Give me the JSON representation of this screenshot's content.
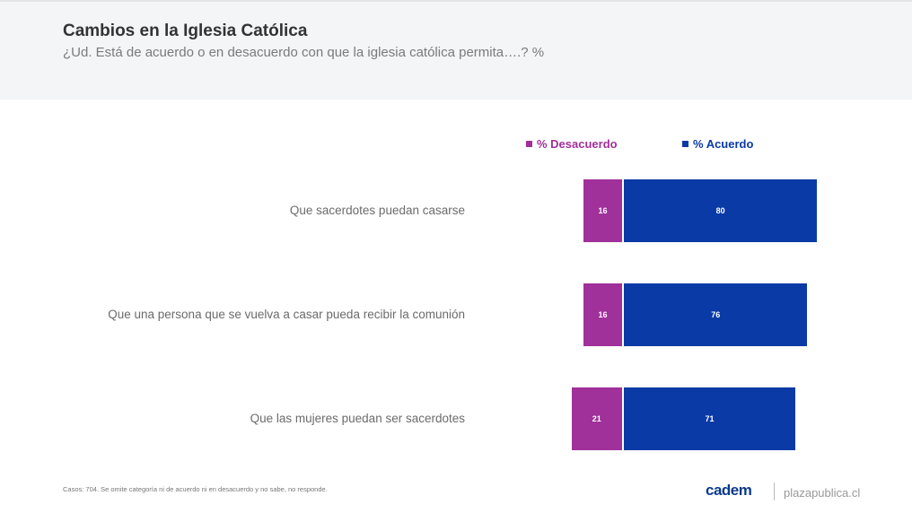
{
  "header": {
    "title": "Cambios en la Iglesia Católica",
    "subtitle": "¿Ud. Está de acuerdo o en desacuerdo con que la iglesia católica permita….? %"
  },
  "chart_data": {
    "type": "bar",
    "orientation": "horizontal-diverging",
    "categories": [
      "Que sacerdotes puedan casarse",
      "Que una persona que se vuelva a casar pueda recibir la comunión",
      "Que las mujeres puedan ser sacerdotes"
    ],
    "series": [
      {
        "name": "% Desacuerdo",
        "color": "#a0309a",
        "values": [
          16,
          16,
          21
        ]
      },
      {
        "name": "% Acuerdo",
        "color": "#0a3aa6",
        "values": [
          80,
          76,
          71
        ]
      }
    ],
    "legend": "top"
  },
  "footer": {
    "note": "Casos: 704. Se omite categoría ni de acuerdo ni en desacuerdo y no sabe, no responde.",
    "logo": "cadem",
    "site": "plazapublica.cl"
  }
}
